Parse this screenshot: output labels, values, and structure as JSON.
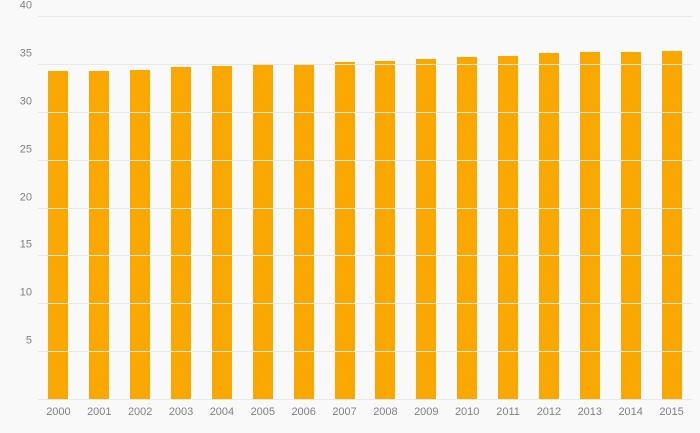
{
  "chart_data": {
    "type": "bar",
    "title": "",
    "xlabel": "",
    "ylabel": "",
    "categories": [
      "2000",
      "2001",
      "2002",
      "2003",
      "2004",
      "2005",
      "2006",
      "2007",
      "2008",
      "2009",
      "2010",
      "2011",
      "2012",
      "2013",
      "2014",
      "2015"
    ],
    "values": [
      34.4,
      34.4,
      34.5,
      34.8,
      34.9,
      35.0,
      35.1,
      35.3,
      35.4,
      35.6,
      35.8,
      35.9,
      36.2,
      36.3,
      36.3,
      36.4
    ],
    "ylim": [
      0,
      40
    ],
    "yticks": [
      0,
      5,
      10,
      15,
      20,
      25,
      30,
      35,
      40
    ],
    "grid": true,
    "legend": false,
    "colors": {
      "bar": "#FAA800",
      "background": "#f9f9f9",
      "gridline": "#e8e8e8",
      "tick_text": "#818181"
    }
  }
}
